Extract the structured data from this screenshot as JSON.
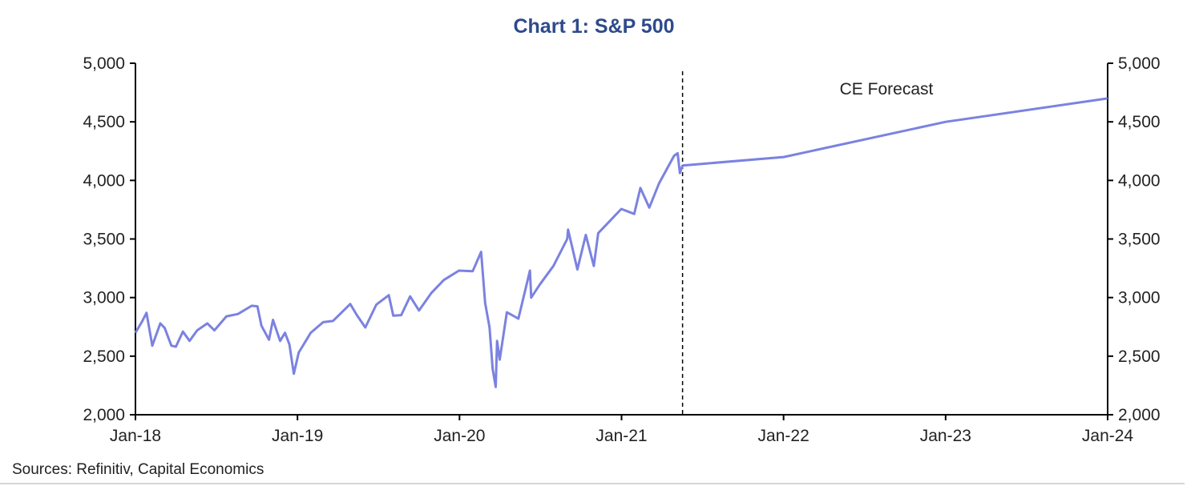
{
  "chart_data": {
    "type": "line",
    "title": "Chart 1: S&P 500",
    "xlabel": "",
    "ylabel": "",
    "x_ticks": [
      "Jan-18",
      "Jan-19",
      "Jan-20",
      "Jan-21",
      "Jan-22",
      "Jan-23",
      "Jan-24"
    ],
    "x_range": [
      "2018-01",
      "2024-01"
    ],
    "y_ticks": [
      "2,000",
      "2,500",
      "3,000",
      "3,500",
      "4,000",
      "4,500",
      "5,000"
    ],
    "ylim": [
      2000,
      5000
    ],
    "y_axes": "left and right (mirrored)",
    "grid": false,
    "color": "#7b82e0",
    "series": [
      {
        "points": [
          [
            "2018-01-01",
            2700
          ],
          [
            "2018-01-15",
            2790
          ],
          [
            "2018-01-26",
            2870
          ],
          [
            "2018-02-08",
            2590
          ],
          [
            "2018-02-26",
            2780
          ],
          [
            "2018-03-08",
            2740
          ],
          [
            "2018-03-23",
            2590
          ],
          [
            "2018-04-02",
            2580
          ],
          [
            "2018-04-18",
            2710
          ],
          [
            "2018-05-03",
            2630
          ],
          [
            "2018-05-20",
            2720
          ],
          [
            "2018-06-12",
            2780
          ],
          [
            "2018-06-28",
            2720
          ],
          [
            "2018-07-25",
            2840
          ],
          [
            "2018-08-20",
            2860
          ],
          [
            "2018-09-20",
            2930
          ],
          [
            "2018-10-03",
            2925
          ],
          [
            "2018-10-12",
            2760
          ],
          [
            "2018-10-29",
            2640
          ],
          [
            "2018-11-07",
            2810
          ],
          [
            "2018-11-23",
            2630
          ],
          [
            "2018-12-04",
            2700
          ],
          [
            "2018-12-14",
            2600
          ],
          [
            "2018-12-24",
            2350
          ],
          [
            "2019-01-04",
            2530
          ],
          [
            "2019-01-31",
            2700
          ],
          [
            "2019-02-28",
            2790
          ],
          [
            "2019-03-22",
            2800
          ],
          [
            "2019-04-30",
            2945
          ],
          [
            "2019-05-15",
            2850
          ],
          [
            "2019-06-03",
            2745
          ],
          [
            "2019-06-28",
            2940
          ],
          [
            "2019-07-26",
            3020
          ],
          [
            "2019-08-05",
            2845
          ],
          [
            "2019-08-23",
            2850
          ],
          [
            "2019-09-12",
            3010
          ],
          [
            "2019-10-02",
            2890
          ],
          [
            "2019-10-30",
            3040
          ],
          [
            "2019-11-27",
            3150
          ],
          [
            "2019-12-31",
            3230
          ],
          [
            "2020-01-31",
            3225
          ],
          [
            "2020-02-19",
            3390
          ],
          [
            "2020-02-28",
            2955
          ],
          [
            "2020-03-09",
            2745
          ],
          [
            "2020-03-16",
            2390
          ],
          [
            "2020-03-23",
            2237
          ],
          [
            "2020-03-26",
            2630
          ],
          [
            "2020-04-01",
            2470
          ],
          [
            "2020-04-17",
            2875
          ],
          [
            "2020-05-13",
            2820
          ],
          [
            "2020-06-08",
            3230
          ],
          [
            "2020-06-11",
            3000
          ],
          [
            "2020-07-01",
            3115
          ],
          [
            "2020-07-31",
            3270
          ],
          [
            "2020-08-31",
            3500
          ],
          [
            "2020-09-02",
            3580
          ],
          [
            "2020-09-23",
            3240
          ],
          [
            "2020-10-12",
            3535
          ],
          [
            "2020-10-30",
            3270
          ],
          [
            "2020-11-09",
            3550
          ],
          [
            "2020-12-31",
            3756
          ],
          [
            "2021-01-29",
            3714
          ],
          [
            "2021-02-12",
            3935
          ],
          [
            "2021-03-04",
            3768
          ],
          [
            "2021-03-26",
            3975
          ],
          [
            "2021-04-29",
            4211
          ],
          [
            "2021-05-07",
            4232
          ],
          [
            "2021-05-12",
            4063
          ],
          [
            "2021-05-18",
            4127
          ]
        ]
      },
      {
        "name": "CE Forecast",
        "points": [
          [
            "2021-05-18",
            4127
          ],
          [
            "2022-01-01",
            4200
          ],
          [
            "2023-01-01",
            4500
          ],
          [
            "2024-01-01",
            4700
          ]
        ]
      }
    ],
    "forecast_divider": "2021-05-18",
    "annotation": "CE Forecast",
    "source": "Sources: Refinitiv, Capital Economics"
  }
}
